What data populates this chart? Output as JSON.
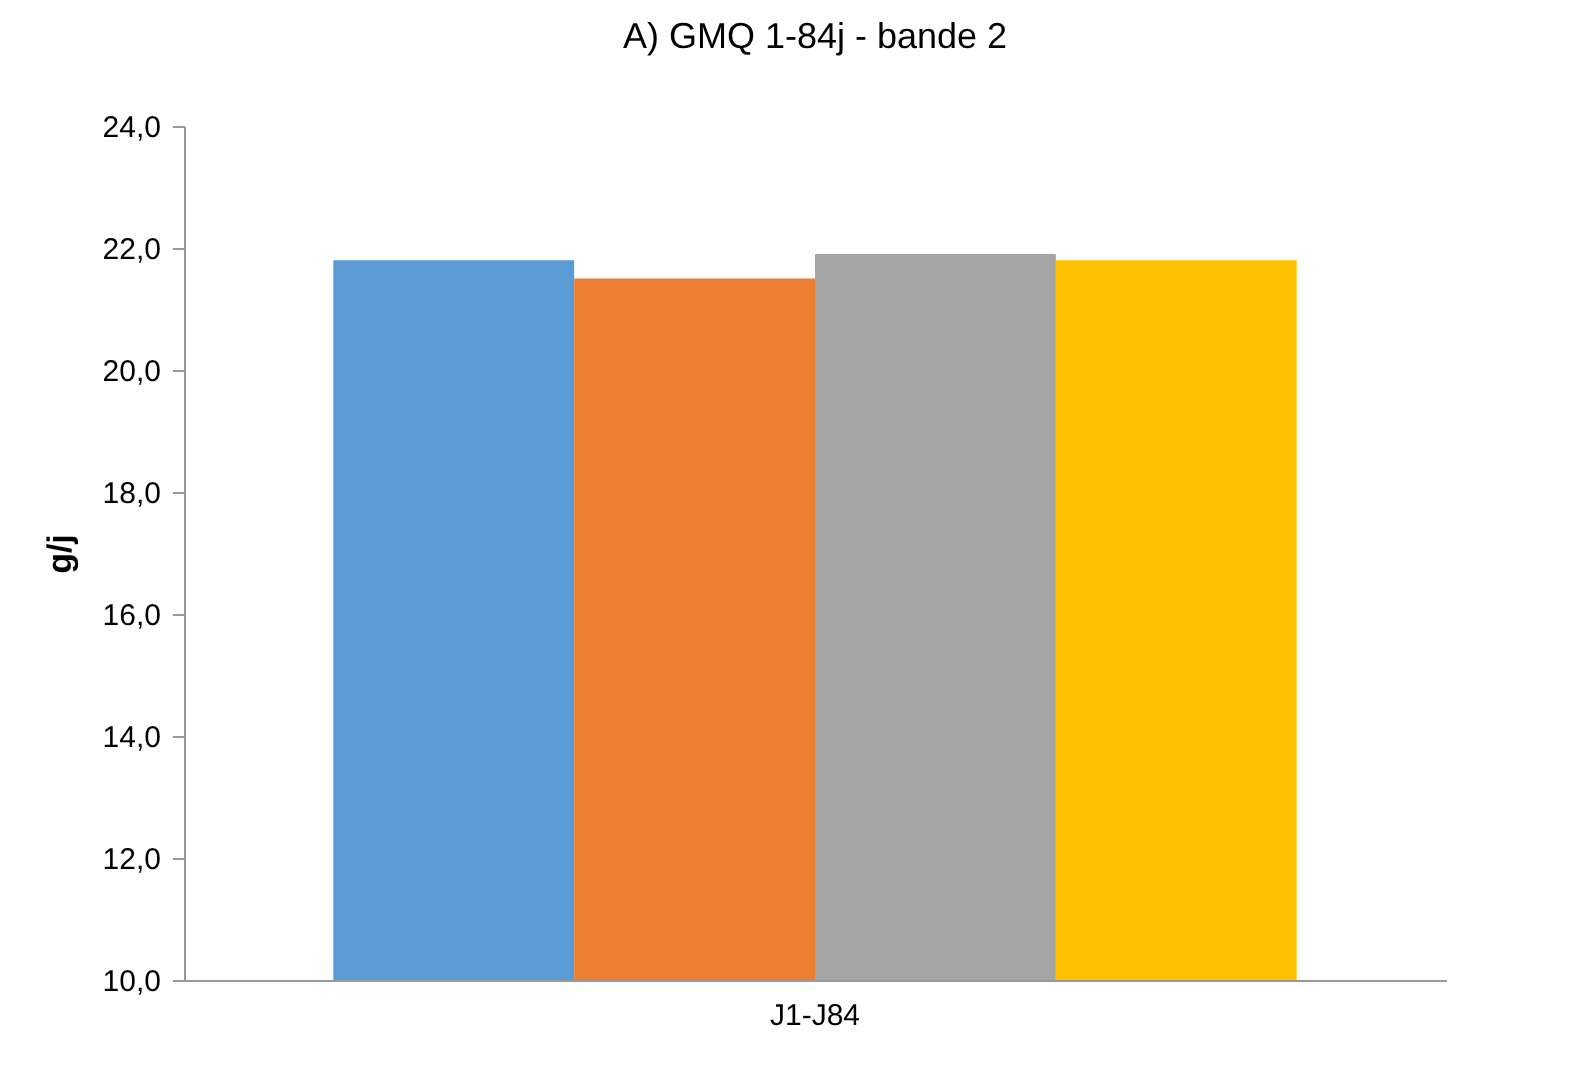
{
  "chart_data": {
    "type": "bar",
    "title": "A) GMQ 1-84j - bande 2",
    "ylabel": "g/j",
    "categories": [
      "J1-J84"
    ],
    "series": [
      {
        "color": "#5b9bd5",
        "values": [
          21.8
        ]
      },
      {
        "color": "#ed7d31",
        "values": [
          21.5
        ]
      },
      {
        "color": "#a5a5a5",
        "values": [
          21.9
        ]
      },
      {
        "color": "#ffc000",
        "values": [
          21.8
        ]
      }
    ],
    "ylim": [
      10,
      24
    ],
    "yticks": [
      {
        "value": 10,
        "label": "10,0"
      },
      {
        "value": 12,
        "label": "12,0"
      },
      {
        "value": 14,
        "label": "14,0"
      },
      {
        "value": 16,
        "label": "16,0"
      },
      {
        "value": 18,
        "label": "18,0"
      },
      {
        "value": 20,
        "label": "20,0"
      },
      {
        "value": 22,
        "label": "22,0"
      },
      {
        "value": 24,
        "label": "24,0"
      }
    ],
    "grid": false,
    "legend": false
  }
}
